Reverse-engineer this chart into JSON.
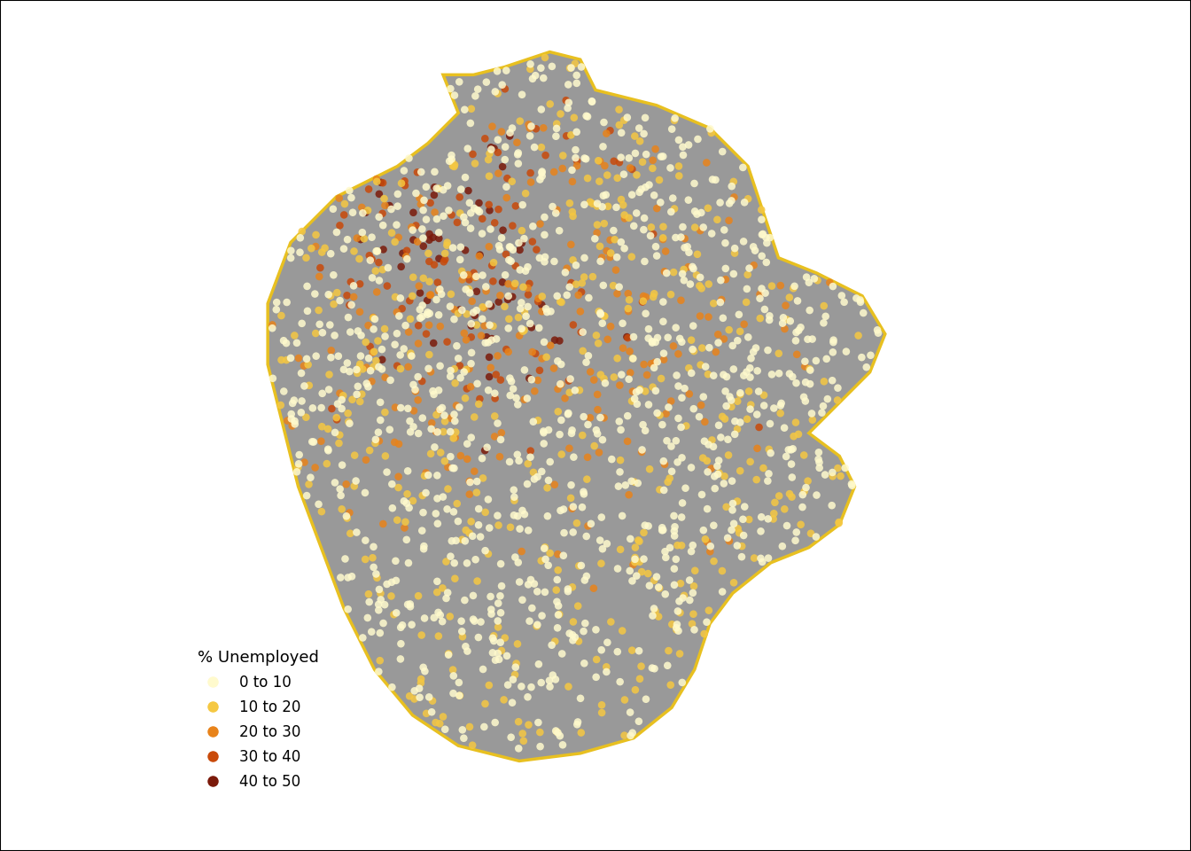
{
  "title": "",
  "legend_title": "% Unemployed",
  "legend_labels": [
    "0 to 10",
    "10 to 20",
    "20 to 30",
    "30 to 40",
    "40 to 50"
  ],
  "legend_colors": [
    "#FFFACD",
    "#F5C842",
    "#E8831A",
    "#C94A0A",
    "#7B1A0A"
  ],
  "dot_colors": [
    "#FFFACD",
    "#F5C842",
    "#E8831A",
    "#C94A0A",
    "#7B1A0A"
  ],
  "background_color": "#ffffff",
  "map_fill_color": "#999999",
  "map_edge_color": "#E8C020",
  "map_edge_width": 2.5,
  "dot_size": 38,
  "dot_alpha": 0.85,
  "figsize": [
    13.44,
    9.6
  ],
  "dpi": 100,
  "random_seed": 42,
  "n_points": 1800,
  "border_padding": 0.05
}
